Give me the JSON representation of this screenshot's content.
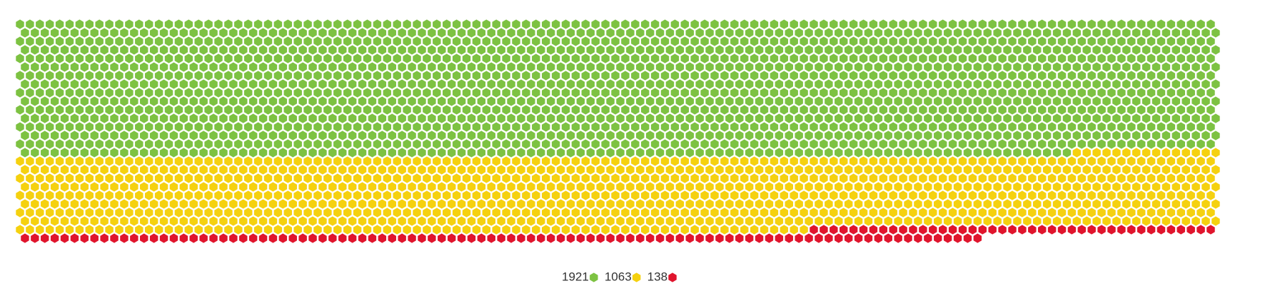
{
  "chart_data": {
    "type": "hex-waffle",
    "series": [
      {
        "value": 1921,
        "color": "#7dc242"
      },
      {
        "value": 1063,
        "color": "#f5d10f"
      },
      {
        "value": 138,
        "color": "#e0152d"
      }
    ]
  }
}
